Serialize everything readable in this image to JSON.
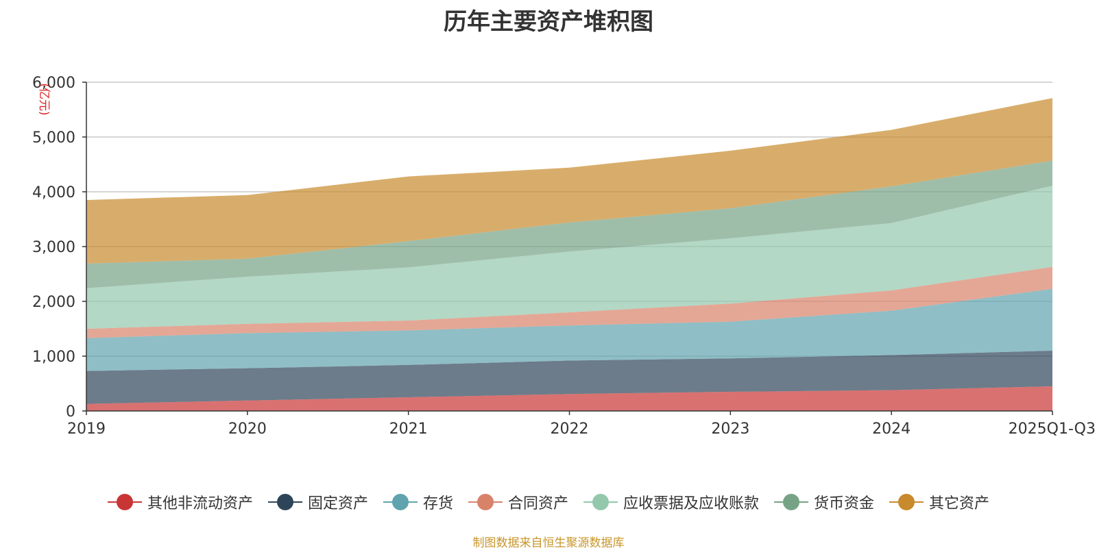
{
  "chart_data": {
    "type": "area",
    "stacked": true,
    "title": "历年主要资产堆积图",
    "unit_label": "(亿元)",
    "categories": [
      "2019",
      "2020",
      "2021",
      "2022",
      "2023",
      "2024",
      "2025Q1-Q3"
    ],
    "ylim": [
      0,
      6000
    ],
    "yticks": [
      0,
      1000,
      2000,
      3000,
      4000,
      5000,
      6000
    ],
    "ytick_labels": [
      "0",
      "1,000",
      "2,000",
      "3,000",
      "4,000",
      "5,000",
      "6,000"
    ],
    "grid": true,
    "legend_position": "bottom",
    "series": [
      {
        "name": "其他非流动资产",
        "color": "#c93535",
        "values": [
          130,
          190,
          250,
          310,
          350,
          380,
          450
        ]
      },
      {
        "name": "固定资产",
        "color": "#2e4559",
        "values": [
          600,
          590,
          590,
          610,
          610,
          640,
          650
        ]
      },
      {
        "name": "存货",
        "color": "#5fa3ae",
        "values": [
          600,
          640,
          630,
          640,
          670,
          810,
          1130
        ]
      },
      {
        "name": "合同资产",
        "color": "#d9826a",
        "values": [
          170,
          170,
          180,
          240,
          330,
          370,
          400
        ]
      },
      {
        "name": "应收票据及应收账款",
        "color": "#93c8ac",
        "values": [
          740,
          860,
          970,
          1110,
          1190,
          1230,
          1480
        ]
      },
      {
        "name": "货币资金",
        "color": "#76a386",
        "values": [
          450,
          330,
          480,
          530,
          550,
          670,
          460
        ]
      },
      {
        "name": "其它资产",
        "color": "#c88a2c",
        "values": [
          1160,
          1160,
          1180,
          1000,
          1050,
          1030,
          1140
        ]
      }
    ],
    "source": "制图数据来自恒生聚源数据库"
  }
}
